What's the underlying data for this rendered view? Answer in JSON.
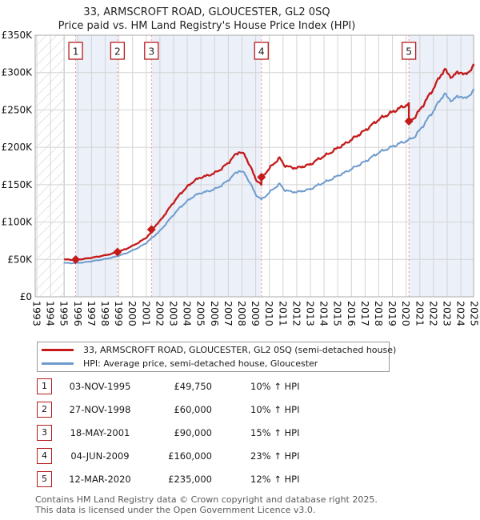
{
  "title": "33, ARMSCROFT ROAD, GLOUCESTER, GL2 0SQ",
  "subtitle": "Price paid vs. HM Land Registry's House Price Index (HPI)",
  "legend": {
    "items": [
      {
        "label": "33, ARMSCROFT ROAD, GLOUCESTER, GL2 0SQ (semi-detached house)",
        "color": "#c41a1a"
      },
      {
        "label": "HPI: Average price, semi-detached house, Gloucester",
        "color": "#6e9bcd"
      }
    ]
  },
  "transactions": [
    {
      "num": "1",
      "date": "03-NOV-1995",
      "price": "£49,750",
      "vs_hpi": "10% ↑ HPI"
    },
    {
      "num": "2",
      "date": "27-NOV-1998",
      "price": "£60,000",
      "vs_hpi": "10% ↑ HPI"
    },
    {
      "num": "3",
      "date": "18-MAY-2001",
      "price": "£90,000",
      "vs_hpi": "15% ↑ HPI"
    },
    {
      "num": "4",
      "date": "04-JUN-2009",
      "price": "£160,000",
      "vs_hpi": "23% ↑ HPI"
    },
    {
      "num": "5",
      "date": "12-MAR-2020",
      "price": "£235,000",
      "vs_hpi": "12% ↑ HPI"
    }
  ],
  "footer": {
    "line1": "Contains HM Land Registry data © Crown copyright and database right 2025.",
    "line2": "This data is licensed under the Open Government Licence v3.0."
  },
  "chart_data": {
    "type": "line",
    "title": "33, ARMSCROFT ROAD, GLOUCESTER, GL2 0SQ",
    "subtitle": "Price paid vs. HM Land Registry's House Price Index (HPI)",
    "ylim": [
      0,
      350000
    ],
    "x_range": [
      1993,
      2025.35
    ],
    "data_start_year": 1995.0,
    "grid": true,
    "legend_position": "below",
    "y_ticks": [
      {
        "value": 0,
        "label": "£0"
      },
      {
        "value": 50000,
        "label": "£50K"
      },
      {
        "value": 100000,
        "label": "£100K"
      },
      {
        "value": 150000,
        "label": "£150K"
      },
      {
        "value": 200000,
        "label": "£200K"
      },
      {
        "value": 250000,
        "label": "£250K"
      },
      {
        "value": 300000,
        "label": "£300K"
      },
      {
        "value": 350000,
        "label": "£350K"
      }
    ],
    "x_ticks": [
      1993,
      1994,
      1995,
      1996,
      1997,
      1998,
      1999,
      2000,
      2001,
      2002,
      2003,
      2004,
      2005,
      2006,
      2007,
      2008,
      2009,
      2010,
      2011,
      2012,
      2013,
      2014,
      2015,
      2016,
      2017,
      2018,
      2019,
      2020,
      2021,
      2022,
      2023,
      2024,
      2025
    ],
    "colors": {
      "property": "#c41a1a",
      "hpi": "#6e9bcd",
      "sale_marker": "#c41a1a",
      "event_line": "#ef9a9a",
      "marker_box_border": "#b71c1c",
      "band": "#ebf0f9",
      "grid": "#d4d4d4",
      "border": "#ababab",
      "hatch": "#c9cdd6"
    },
    "sales": [
      {
        "num": "1",
        "year": 1995.84,
        "price": 49750,
        "hpi_ratio": 1.1
      },
      {
        "num": "2",
        "year": 1998.9,
        "price": 60000,
        "hpi_ratio": 1.1
      },
      {
        "num": "3",
        "year": 2001.38,
        "price": 90000,
        "hpi_ratio": 1.15
      },
      {
        "num": "4",
        "year": 2009.42,
        "price": 160000,
        "hpi_ratio": 1.23
      },
      {
        "num": "5",
        "year": 2020.2,
        "price": 235000,
        "hpi_ratio": 1.12
      }
    ],
    "series": [
      {
        "name": "33, ARMSCROFT ROAD, GLOUCESTER, GL2 0SQ (semi-detached house)",
        "derivation": "hpi_anchors value times hpi_ratio of most recent sale"
      },
      {
        "name": "HPI: Average price, semi-detached house, Gloucester",
        "anchors_gbp": [
          [
            1995.0,
            45500
          ],
          [
            1995.5,
            45000
          ],
          [
            1995.84,
            45227
          ],
          [
            1996.3,
            45800
          ],
          [
            1997.0,
            47500
          ],
          [
            1997.5,
            49000
          ],
          [
            1998.0,
            50500
          ],
          [
            1998.5,
            52500
          ],
          [
            1998.9,
            54545
          ],
          [
            1999.5,
            58000
          ],
          [
            2000.0,
            62000
          ],
          [
            2000.5,
            66500
          ],
          [
            2001.0,
            72000
          ],
          [
            2001.38,
            78261
          ],
          [
            2002.0,
            88000
          ],
          [
            2002.5,
            99000
          ],
          [
            2003.0,
            110000
          ],
          [
            2003.5,
            120000
          ],
          [
            2004.0,
            128000
          ],
          [
            2004.5,
            135000
          ],
          [
            2005.0,
            139000
          ],
          [
            2005.5,
            141000
          ],
          [
            2006.0,
            144000
          ],
          [
            2006.5,
            149000
          ],
          [
            2007.0,
            156000
          ],
          [
            2007.5,
            165000
          ],
          [
            2007.8,
            169000
          ],
          [
            2008.2,
            165000
          ],
          [
            2008.6,
            152000
          ],
          [
            2009.0,
            137000
          ],
          [
            2009.42,
            130081
          ],
          [
            2009.8,
            136000
          ],
          [
            2010.2,
            143000
          ],
          [
            2010.75,
            151000
          ],
          [
            2011.1,
            143000
          ],
          [
            2011.5,
            141000
          ],
          [
            2012.0,
            140000
          ],
          [
            2012.5,
            142000
          ],
          [
            2013.0,
            144000
          ],
          [
            2013.5,
            149000
          ],
          [
            2014.0,
            153000
          ],
          [
            2014.5,
            157000
          ],
          [
            2015.0,
            162000
          ],
          [
            2015.5,
            166000
          ],
          [
            2016.0,
            171000
          ],
          [
            2016.5,
            176000
          ],
          [
            2017.0,
            181000
          ],
          [
            2017.5,
            187000
          ],
          [
            2018.0,
            193000
          ],
          [
            2018.5,
            197000
          ],
          [
            2019.0,
            201000
          ],
          [
            2019.5,
            205000
          ],
          [
            2020.2,
            209821
          ],
          [
            2020.6,
            214000
          ],
          [
            2021.0,
            223000
          ],
          [
            2021.5,
            236000
          ],
          [
            2022.0,
            249000
          ],
          [
            2022.4,
            261000
          ],
          [
            2022.8,
            272000
          ],
          [
            2023.1,
            265000
          ],
          [
            2023.4,
            263000
          ],
          [
            2023.8,
            268000
          ],
          [
            2024.0,
            269000
          ],
          [
            2024.3,
            264000
          ],
          [
            2024.6,
            270000
          ],
          [
            2024.85,
            274000
          ],
          [
            2025.05,
            277000
          ]
        ]
      }
    ]
  }
}
